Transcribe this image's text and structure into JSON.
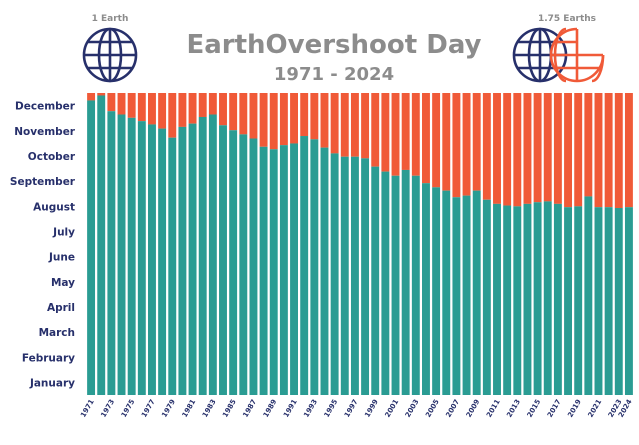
{
  "header": {
    "title": "EarthOvershoot Day",
    "subtitle": "1971 - 2024",
    "left_caption": "1 Earth",
    "right_caption": "1.75 Earths"
  },
  "colors": {
    "teal": "#2a9c93",
    "orange": "#f05a38",
    "navy": "#27306b",
    "gray": "#8c8c8c"
  },
  "icons": {
    "left": "globe-icon",
    "right": [
      "globe-icon",
      "partial-globe-icon"
    ]
  },
  "chart_data": {
    "type": "bar",
    "stacked": true,
    "y_axis": {
      "categories": [
        "January",
        "February",
        "March",
        "April",
        "May",
        "June",
        "July",
        "August",
        "September",
        "October",
        "November",
        "December"
      ],
      "range_days": [
        0,
        365
      ]
    },
    "x_labels": [
      "1971",
      "1973",
      "1975",
      "1977",
      "1979",
      "1981",
      "1983",
      "1985",
      "1987",
      "1989",
      "1991",
      "1993",
      "1995",
      "1997",
      "1999",
      "2001",
      "2003",
      "2005",
      "2007",
      "2009",
      "2011",
      "2013",
      "2015",
      "2017",
      "2019",
      "2021",
      "2023",
      "2024"
    ],
    "years": [
      1971,
      1972,
      1973,
      1974,
      1975,
      1976,
      1977,
      1978,
      1979,
      1980,
      1981,
      1982,
      1983,
      1984,
      1985,
      1986,
      1987,
      1988,
      1989,
      1990,
      1991,
      1992,
      1993,
      1994,
      1995,
      1996,
      1997,
      1998,
      1999,
      2000,
      2001,
      2002,
      2003,
      2004,
      2005,
      2006,
      2007,
      2008,
      2009,
      2010,
      2011,
      2012,
      2013,
      2014,
      2015,
      2016,
      2017,
      2018,
      2019,
      2020,
      2021,
      2022,
      2023,
      2024
    ],
    "overshoot_day_of_year": [
      356,
      362,
      343,
      339,
      335,
      331,
      327,
      322,
      311,
      324,
      328,
      336,
      339,
      326,
      320,
      315,
      310,
      300,
      297,
      302,
      304,
      313,
      309,
      299,
      292,
      288,
      288,
      286,
      276,
      270,
      265,
      272,
      265,
      256,
      251,
      247,
      239,
      241,
      247,
      236,
      231,
      229,
      228,
      231,
      233,
      234,
      231,
      227,
      228,
      240,
      227,
      227,
      226,
      227
    ],
    "series": [
      {
        "name": "",
        "color": "#2a9c93"
      },
      {
        "name": "",
        "color": "#f05a38"
      }
    ]
  }
}
